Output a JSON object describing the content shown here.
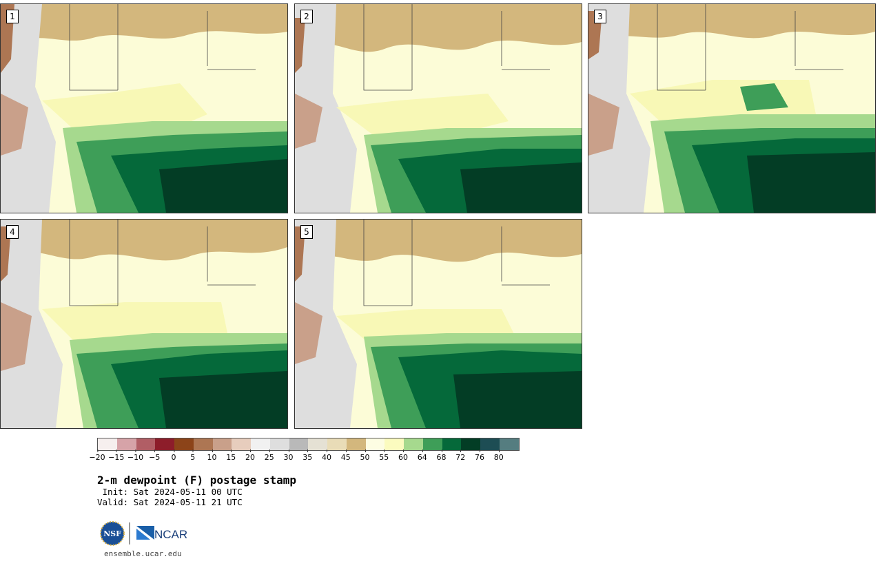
{
  "panels": [
    {
      "label": "1"
    },
    {
      "label": "2"
    },
    {
      "label": "3"
    },
    {
      "label": "4"
    },
    {
      "label": "5"
    }
  ],
  "colorbar": {
    "colors": [
      "#f6efee",
      "#d6a3a8",
      "#b15e65",
      "#8d1d2a",
      "#8c4419",
      "#ad7653",
      "#c9a08a",
      "#e7cdbd",
      "#f1f1f1",
      "#dedede",
      "#b9b9b9",
      "#e5e1d4",
      "#e9dcb7",
      "#d3b77d",
      "#fdfde3",
      "#fbfbbf",
      "#a6d98e",
      "#3e9e58",
      "#05693a",
      "#033d25",
      "#1d4d54",
      "#557d80"
    ],
    "ticks": [
      "−20",
      "−15",
      "−10",
      "−5",
      "0",
      "5",
      "10",
      "15",
      "20",
      "25",
      "30",
      "35",
      "40",
      "45",
      "50",
      "55",
      "60",
      "64",
      "68",
      "72",
      "76",
      "80"
    ]
  },
  "title": "2-m dewpoint (F) postage stamp",
  "init": " Init: Sat 2024-05-11 00 UTC",
  "valid": "Valid: Sat 2024-05-11 21 UTC",
  "logo_nsf": "NSF",
  "logo_ncar": "NCAR",
  "site": "ensemble.ucar.edu"
}
